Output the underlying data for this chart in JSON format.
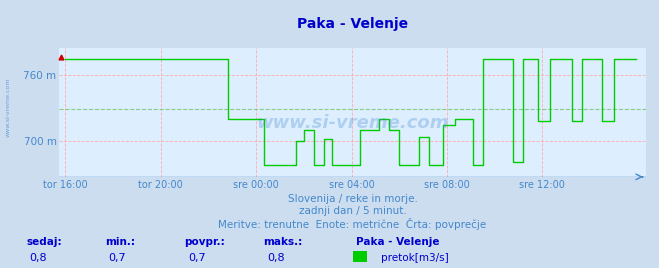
{
  "title": "Paka - Velenje",
  "title_color": "#0000cc",
  "bg_color": "#ccddf0",
  "plot_bg_color": "#ddeeff",
  "grid_color": "#ffaaaa",
  "avg_line_color": "#8888ff",
  "line_color": "#00cc00",
  "watermark": "www.si-vreme.com",
  "watermark_color": "#4488cc",
  "ylabel_color": "#4488cc",
  "xlabel_color": "#4488cc",
  "ylim": [
    667,
    785
  ],
  "yticks": [
    700,
    760
  ],
  "ytick_labels": [
    "700 m",
    "760 m"
  ],
  "avg_y": 729,
  "xtick_positions": [
    0,
    48,
    96,
    144,
    192,
    240
  ],
  "xtick_labels": [
    "tor 16:00",
    "tor 20:00",
    "sre 00:00",
    "sre 04:00",
    "sre 08:00",
    "sre 12:00"
  ],
  "n_points": 288,
  "subtitle1": "Slovenija / reke in morje.",
  "subtitle2": "zadnji dan / 5 minut.",
  "subtitle3": "Meritve: trenutne  Enote: metrične  Črta: povprečje",
  "subtitle_color": "#4488cc",
  "legend_title": "Paka - Velenje",
  "legend_label": "pretok[m3/s]",
  "stats_labels": [
    "sedaj:",
    "min.:",
    "povpr.:",
    "maks.:"
  ],
  "stats_values": [
    "0,8",
    "0,7",
    "0,7",
    "0,8"
  ],
  "stats_color": "#0000cc",
  "footer_bg": "#ccddf0",
  "high_val": 775,
  "mid_val": 720,
  "low_val": 676
}
